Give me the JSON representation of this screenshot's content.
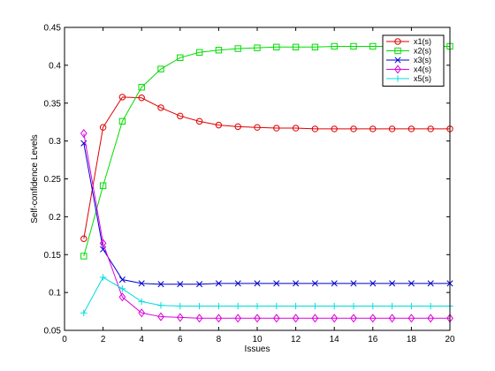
{
  "chart_data": {
    "type": "line",
    "title": "",
    "xlabel": "Issues",
    "ylabel": "Self-confidence Levels",
    "xlim": [
      0,
      20
    ],
    "ylim": [
      0.05,
      0.45
    ],
    "xticks": [
      "0",
      "2",
      "4",
      "6",
      "8",
      "10",
      "12",
      "14",
      "16",
      "18",
      "20"
    ],
    "yticks": [
      "0.05",
      "0.1",
      "0.15",
      "0.2",
      "0.25",
      "0.3",
      "0.35",
      "0.4",
      "0.45"
    ],
    "grid": false,
    "legend_position": "top-right",
    "x": [
      1,
      2,
      3,
      4,
      5,
      6,
      7,
      8,
      9,
      10,
      11,
      12,
      13,
      14,
      15,
      16,
      17,
      18,
      19,
      20
    ],
    "series": [
      {
        "name": "x1(s)",
        "color": "#e00000",
        "marker": "circle",
        "values": [
          0.171,
          0.318,
          0.358,
          0.357,
          0.344,
          0.333,
          0.326,
          0.321,
          0.319,
          0.318,
          0.317,
          0.317,
          0.316,
          0.316,
          0.316,
          0.316,
          0.316,
          0.316,
          0.316,
          0.316
        ]
      },
      {
        "name": "x2(s)",
        "color": "#00dd00",
        "marker": "square",
        "values": [
          0.148,
          0.241,
          0.326,
          0.371,
          0.395,
          0.41,
          0.417,
          0.42,
          0.422,
          0.423,
          0.424,
          0.424,
          0.424,
          0.425,
          0.425,
          0.425,
          0.425,
          0.425,
          0.425,
          0.425
        ]
      },
      {
        "name": "x3(s)",
        "color": "#0000cc",
        "marker": "x",
        "values": [
          0.297,
          0.157,
          0.117,
          0.112,
          0.111,
          0.111,
          0.111,
          0.112,
          0.112,
          0.112,
          0.112,
          0.112,
          0.112,
          0.112,
          0.112,
          0.112,
          0.112,
          0.112,
          0.112,
          0.112
        ]
      },
      {
        "name": "x4(s)",
        "color": "#dd00dd",
        "marker": "diamond",
        "values": [
          0.31,
          0.165,
          0.094,
          0.073,
          0.068,
          0.067,
          0.066,
          0.066,
          0.066,
          0.066,
          0.066,
          0.066,
          0.066,
          0.066,
          0.066,
          0.066,
          0.066,
          0.066,
          0.066,
          0.066
        ]
      },
      {
        "name": "x5(s)",
        "color": "#00dddd",
        "marker": "plus",
        "values": [
          0.073,
          0.12,
          0.105,
          0.088,
          0.083,
          0.082,
          0.082,
          0.082,
          0.082,
          0.082,
          0.082,
          0.082,
          0.082,
          0.082,
          0.082,
          0.082,
          0.082,
          0.082,
          0.082,
          0.082
        ]
      }
    ]
  }
}
